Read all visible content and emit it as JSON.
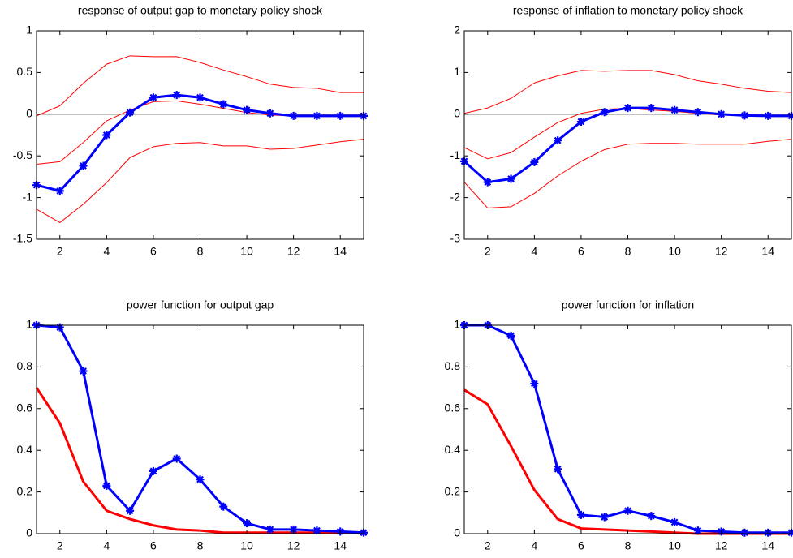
{
  "chart_data": [
    {
      "type": "line",
      "title": "response of output gap to monetary policy shock",
      "x": [
        1,
        2,
        3,
        4,
        5,
        6,
        7,
        8,
        9,
        10,
        11,
        12,
        13,
        14,
        15
      ],
      "xlim": [
        1,
        15
      ],
      "xticks": [
        2,
        4,
        6,
        8,
        10,
        12,
        14
      ],
      "ylim": [
        -1.5,
        1
      ],
      "yticks": [
        -1.5,
        -1,
        -0.5,
        0,
        0.5,
        1
      ],
      "zero_line": true,
      "series": [
        {
          "color": "#ff0000",
          "style": "thin",
          "values": [
            -0.02,
            0.1,
            0.37,
            0.6,
            0.7,
            0.69,
            0.69,
            0.62,
            0.53,
            0.45,
            0.36,
            0.32,
            0.31,
            0.26,
            0.26
          ]
        },
        {
          "color": "#ff0000",
          "style": "thin",
          "values": [
            -0.6,
            -0.57,
            -0.34,
            -0.08,
            0.05,
            0.15,
            0.16,
            0.12,
            0.07,
            0.02,
            -0.01,
            -0.02,
            -0.02,
            -0.02,
            -0.02
          ]
        },
        {
          "color": "#ff0000",
          "style": "thin",
          "values": [
            -1.14,
            -1.3,
            -1.08,
            -0.82,
            -0.52,
            -0.39,
            -0.35,
            -0.34,
            -0.38,
            -0.38,
            -0.42,
            -0.41,
            -0.37,
            -0.33,
            -0.3
          ]
        },
        {
          "color": "#0000ff",
          "style": "star",
          "values": [
            -0.85,
            -0.92,
            -0.62,
            -0.25,
            0.02,
            0.2,
            0.23,
            0.2,
            0.12,
            0.05,
            0.01,
            -0.02,
            -0.02,
            -0.02,
            -0.02
          ]
        }
      ]
    },
    {
      "type": "line",
      "title": "response of inflation to monetary policy shock",
      "x": [
        1,
        2,
        3,
        4,
        5,
        6,
        7,
        8,
        9,
        10,
        11,
        12,
        13,
        14,
        15
      ],
      "xlim": [
        1,
        15
      ],
      "xticks": [
        2,
        4,
        6,
        8,
        10,
        12,
        14
      ],
      "ylim": [
        -3,
        2
      ],
      "yticks": [
        -3,
        -2,
        -1,
        0,
        1,
        2
      ],
      "zero_line": true,
      "series": [
        {
          "color": "#ff0000",
          "style": "thin",
          "values": [
            0.02,
            0.15,
            0.38,
            0.75,
            0.92,
            1.05,
            1.03,
            1.05,
            1.05,
            0.95,
            0.8,
            0.72,
            0.62,
            0.55,
            0.52
          ]
        },
        {
          "color": "#ff0000",
          "style": "thin",
          "values": [
            -0.8,
            -1.07,
            -0.92,
            -0.55,
            -0.2,
            0.02,
            0.12,
            0.14,
            0.1,
            0.07,
            0.02,
            -0.02,
            -0.04,
            -0.04,
            -0.04
          ]
        },
        {
          "color": "#ff0000",
          "style": "thin",
          "values": [
            -1.63,
            -2.25,
            -2.22,
            -1.9,
            -1.48,
            -1.13,
            -0.85,
            -0.72,
            -0.7,
            -0.7,
            -0.72,
            -0.72,
            -0.72,
            -0.65,
            -0.6
          ]
        },
        {
          "color": "#0000ff",
          "style": "star",
          "values": [
            -1.13,
            -1.63,
            -1.55,
            -1.15,
            -0.63,
            -0.18,
            0.05,
            0.15,
            0.15,
            0.1,
            0.05,
            0,
            -0.03,
            -0.04,
            -0.04
          ]
        }
      ]
    },
    {
      "type": "line",
      "title": "power function for output gap",
      "x": [
        1,
        2,
        3,
        4,
        5,
        6,
        7,
        8,
        9,
        10,
        11,
        12,
        13,
        14,
        15
      ],
      "xlim": [
        1,
        15
      ],
      "xticks": [
        2,
        4,
        6,
        8,
        10,
        12,
        14
      ],
      "ylim": [
        0,
        1
      ],
      "yticks": [
        0,
        0.2,
        0.4,
        0.6,
        0.8,
        1
      ],
      "zero_line": false,
      "series": [
        {
          "color": "#ff0000",
          "style": "thick",
          "values": [
            0.7,
            0.53,
            0.25,
            0.11,
            0.07,
            0.04,
            0.02,
            0.015,
            0.005,
            0.005,
            0.005,
            0.005,
            0.005,
            0.005,
            0.005
          ]
        },
        {
          "color": "#0000ff",
          "style": "star",
          "values": [
            1,
            0.99,
            0.78,
            0.23,
            0.11,
            0.3,
            0.36,
            0.26,
            0.13,
            0.05,
            0.02,
            0.02,
            0.015,
            0.01,
            0.005
          ]
        }
      ]
    },
    {
      "type": "line",
      "title": "power function for inflation",
      "x": [
        1,
        2,
        3,
        4,
        5,
        6,
        7,
        8,
        9,
        10,
        11,
        12,
        13,
        14,
        15
      ],
      "xlim": [
        1,
        15
      ],
      "xticks": [
        2,
        4,
        6,
        8,
        10,
        12,
        14
      ],
      "ylim": [
        0,
        1
      ],
      "yticks": [
        0,
        0.2,
        0.4,
        0.6,
        0.8,
        1
      ],
      "zero_line": false,
      "series": [
        {
          "color": "#ff0000",
          "style": "thick",
          "values": [
            0.69,
            0.62,
            0.42,
            0.21,
            0.07,
            0.025,
            0.02,
            0.015,
            0.01,
            0.005,
            0,
            0,
            0,
            0,
            0
          ]
        },
        {
          "color": "#0000ff",
          "style": "star",
          "values": [
            1,
            1,
            0.95,
            0.72,
            0.31,
            0.09,
            0.08,
            0.11,
            0.085,
            0.055,
            0.015,
            0.01,
            0.005,
            0.005,
            0.005
          ]
        }
      ]
    }
  ]
}
